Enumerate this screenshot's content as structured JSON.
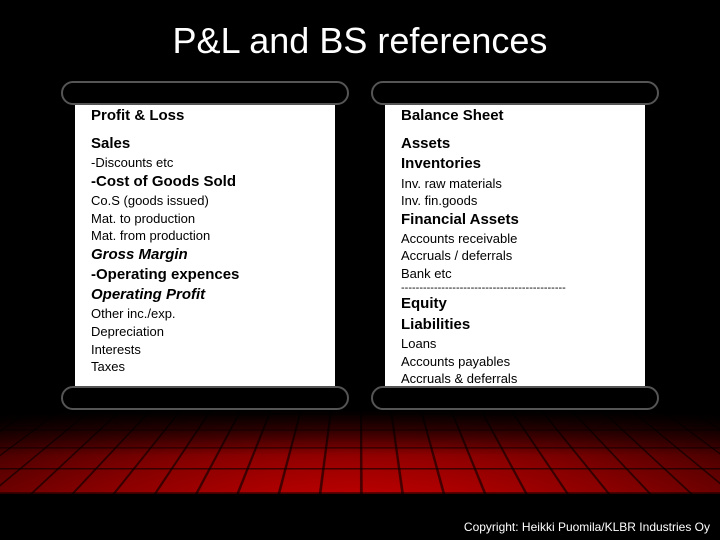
{
  "title": "P&L and BS references",
  "panels": {
    "left": {
      "header": "Profit & Loss",
      "lines": [
        {
          "text": "Sales",
          "style": "bold-line"
        },
        {
          "text": "-Discounts etc",
          "style": "normal-line"
        },
        {
          "text": "-Cost of Goods Sold",
          "style": "bold-line"
        },
        {
          "text": "Co.S (goods issued)",
          "style": "normal-line"
        },
        {
          "text": "Mat. to production",
          "style": "normal-line"
        },
        {
          "text": "Mat. from production",
          "style": "normal-line"
        },
        {
          "text": "Gross Margin",
          "style": "italic-line"
        },
        {
          "text": "-Operating expences",
          "style": "bold-line"
        },
        {
          "text": "Operating Profit",
          "style": "italic-line"
        },
        {
          "text": "Other inc./exp.",
          "style": "normal-line"
        },
        {
          "text": "Depreciation",
          "style": "normal-line"
        },
        {
          "text": "Interests",
          "style": "normal-line"
        },
        {
          "text": "Taxes",
          "style": "normal-line"
        }
      ]
    },
    "right": {
      "header": "Balance Sheet",
      "lines": [
        {
          "text": "Assets",
          "style": "bold-line"
        },
        {
          "text": "Inventories",
          "style": "bold-line"
        },
        {
          "text": "Inv. raw materials",
          "style": "normal-line"
        },
        {
          "text": "Inv. fin.goods",
          "style": "normal-line"
        },
        {
          "text": "Financial Assets",
          "style": "bold-line"
        },
        {
          "text": "Accounts receivable",
          "style": "normal-line"
        },
        {
          "text": "Accruals / deferrals",
          "style": "normal-line"
        },
        {
          "text": "Bank etc",
          "style": "normal-line"
        },
        {
          "text": "---------------------------------------------",
          "style": "divider-line"
        },
        {
          "text": "Equity",
          "style": "bold-line"
        },
        {
          "text": "Liabilities",
          "style": "bold-line"
        },
        {
          "text": "Loans",
          "style": "normal-line"
        },
        {
          "text": "Accounts payables",
          "style": "normal-line"
        },
        {
          "text": "Accruals & deferrals",
          "style": "normal-line"
        }
      ]
    }
  },
  "copyright": "Copyright: Heikki Puomila/KLBR Industries Oy",
  "colors": {
    "background": "#000000",
    "panel_bg": "#ffffff",
    "title_color": "#ffffff",
    "text_color": "#000000",
    "floor_red": "#cc0000"
  }
}
